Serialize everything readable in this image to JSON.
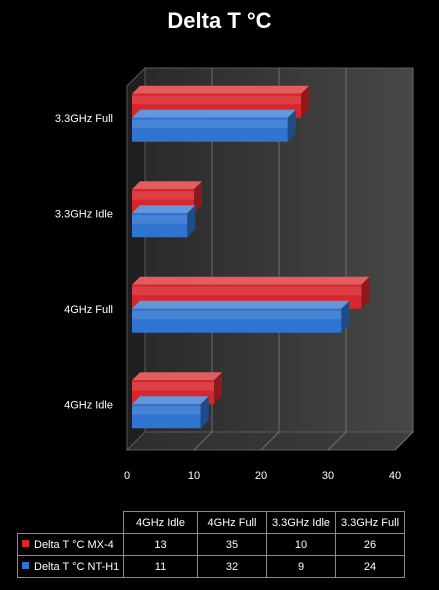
{
  "chart_data": {
    "type": "bar",
    "orientation": "horizontal",
    "style": "3d",
    "title": "Delta T °C",
    "categories": [
      "4GHz Idle",
      "4GHz Full",
      "3.3GHz Idle",
      "3.3GHz Full"
    ],
    "series": [
      {
        "name": "Delta T °C MX-4",
        "color": "#d9262b",
        "values": [
          13,
          35,
          10,
          26
        ]
      },
      {
        "name": "Delta T °C NT-H1",
        "color": "#2f74d0",
        "values": [
          11,
          32,
          9,
          24
        ]
      }
    ],
    "xlim": [
      0,
      40
    ],
    "xticks": [
      0,
      10,
      20,
      30,
      40
    ],
    "grid": true,
    "legend": "data-table"
  }
}
